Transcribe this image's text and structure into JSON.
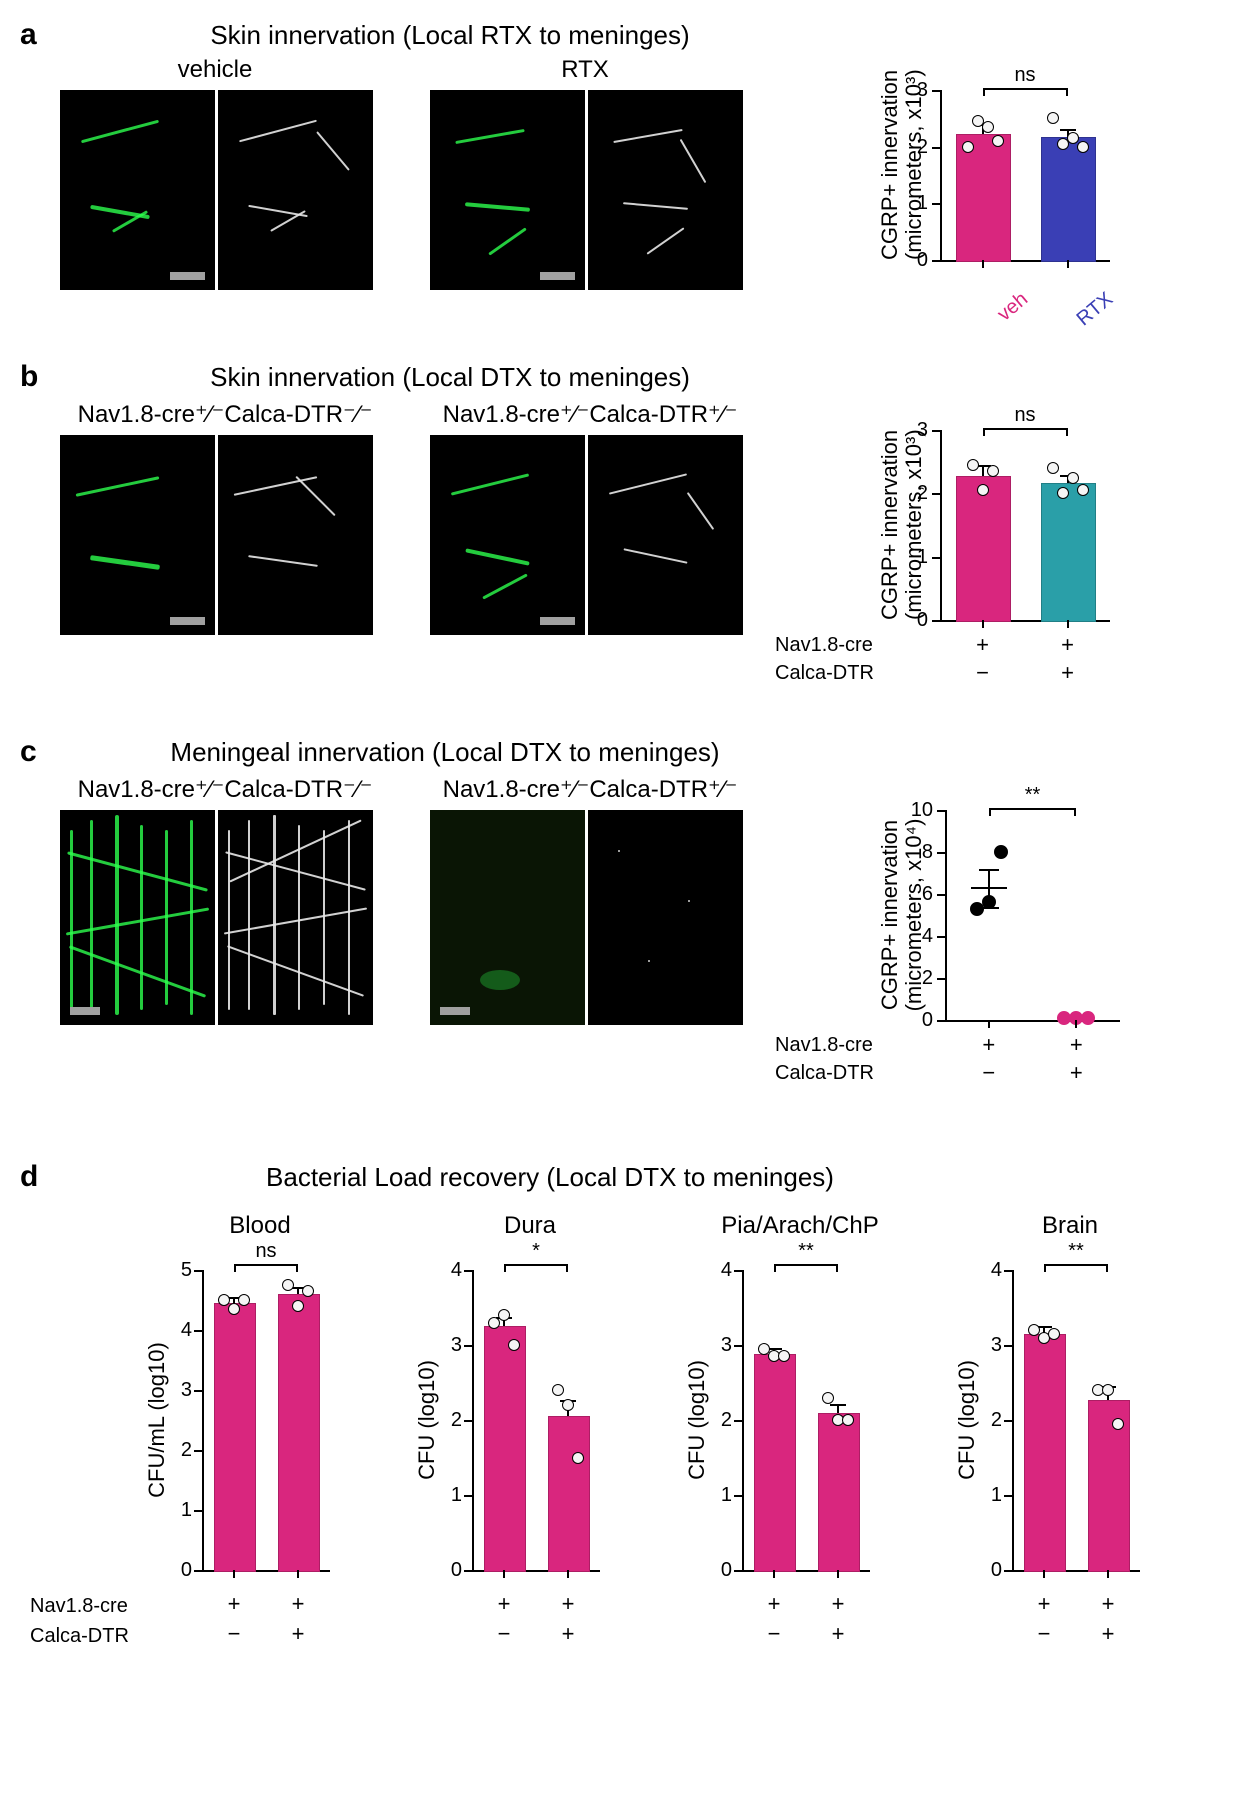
{
  "colors": {
    "magenta": "#d9267e",
    "blue": "#3a3fb5",
    "teal": "#2a9fa8",
    "black": "#000000",
    "white": "#ffffff",
    "point_fill": "#f5f5f5",
    "point_stroke": "#000000"
  },
  "panel_a": {
    "label": "a",
    "title": "Skin innervation (Local RTX to meninges)",
    "left_label": "vehicle",
    "right_label": "RTX",
    "chart": {
      "type": "bar",
      "y_title_line1": "CGRP+ innervation",
      "y_title_line2": "(micrometers, x10³)",
      "ylim": [
        0,
        3
      ],
      "yticks": [
        0,
        1,
        2,
        3
      ],
      "bars": [
        {
          "label": "veh",
          "value": 2.22,
          "err": 0.18,
          "color": "#d9267e",
          "label_color": "#d9267e",
          "points": [
            2.0,
            2.45,
            2.35,
            2.1
          ]
        },
        {
          "label": "RTX",
          "value": 2.17,
          "err": 0.14,
          "color": "#3a3fb5",
          "label_color": "#3a3fb5",
          "points": [
            2.5,
            2.05,
            2.15,
            2.0
          ]
        }
      ],
      "sig": "ns"
    }
  },
  "panel_b": {
    "label": "b",
    "title": "Skin innervation (Local DTX to meninges)",
    "left_label": "Nav1.8-cre⁺⁄⁻Calca-DTR⁻⁄⁻",
    "right_label": "Nav1.8-cre⁺⁄⁻Calca-DTR⁺⁄⁻",
    "chart": {
      "type": "bar",
      "y_title_line1": "CGRP+ innervation",
      "y_title_line2": "(micrometers, x10³)",
      "ylim": [
        0,
        3
      ],
      "yticks": [
        0,
        1,
        2,
        3
      ],
      "bars": [
        {
          "value": 2.28,
          "err": 0.16,
          "color": "#d9267e",
          "points": [
            2.45,
            2.05,
            2.35
          ]
        },
        {
          "value": 2.17,
          "err": 0.12,
          "color": "#2a9fa8",
          "points": [
            2.4,
            2.0,
            2.25,
            2.05
          ]
        }
      ],
      "sig": "ns",
      "genotype_rows": [
        {
          "name": "Nav1.8-cre",
          "syms": [
            "+",
            "+"
          ]
        },
        {
          "name": "Calca-DTR",
          "syms": [
            "−",
            "+"
          ]
        }
      ]
    }
  },
  "panel_c": {
    "label": "c",
    "title": "Meningeal innervation (Local DTX to meninges)",
    "left_label": "Nav1.8-cre⁺⁄⁻Calca-DTR⁻⁄⁻",
    "right_label": "Nav1.8-cre⁺⁄⁻Calca-DTR⁺⁄⁻",
    "chart": {
      "type": "scatter",
      "y_title_line1": "CGRP+ innervation",
      "y_title_line2": "(micrometers, x10⁴)",
      "ylim": [
        0,
        10
      ],
      "yticks": [
        0,
        2,
        4,
        6,
        8,
        10
      ],
      "groups": [
        {
          "mean": 6.3,
          "err": 0.9,
          "color": "#000000",
          "fill": "#000000",
          "points": [
            5.3,
            5.6,
            8.0
          ]
        },
        {
          "mean": 0.1,
          "err": 0.05,
          "color": "#d9267e",
          "fill": "#d9267e",
          "points": [
            0.1,
            0.1,
            0.1
          ]
        }
      ],
      "sig": "**",
      "genotype_rows": [
        {
          "name": "Nav1.8-cre",
          "syms": [
            "+",
            "+"
          ]
        },
        {
          "name": "Calca-DTR",
          "syms": [
            "−",
            "+"
          ]
        }
      ]
    }
  },
  "panel_d": {
    "label": "d",
    "title": "Bacterial Load recovery (Local DTX to meninges)",
    "subplots": [
      {
        "title": "Blood",
        "y_title": "CFU/mL (log10)",
        "ylim": [
          0,
          5
        ],
        "yticks": [
          0,
          1,
          2,
          3,
          4,
          5
        ],
        "bars": [
          {
            "value": 4.45,
            "err": 0.1,
            "points": [
              4.5,
              4.35,
              4.5
            ]
          },
          {
            "value": 4.6,
            "err": 0.12,
            "points": [
              4.75,
              4.4,
              4.65
            ]
          }
        ],
        "sig": "ns"
      },
      {
        "title": "Dura",
        "y_title": "CFU (log10)",
        "ylim": [
          0,
          4
        ],
        "yticks": [
          0,
          1,
          2,
          3,
          4
        ],
        "bars": [
          {
            "value": 3.25,
            "err": 0.12,
            "points": [
              3.3,
              3.4,
              3.0
            ]
          },
          {
            "value": 2.05,
            "err": 0.22,
            "points": [
              2.4,
              2.2,
              1.5
            ]
          }
        ],
        "sig": "*"
      },
      {
        "title": "Pia/Arach/ChP",
        "y_title": "CFU (log10)",
        "ylim": [
          0,
          4
        ],
        "yticks": [
          0,
          1,
          2,
          3,
          4
        ],
        "bars": [
          {
            "value": 2.88,
            "err": 0.08,
            "points": [
              2.95,
              2.85,
              2.85
            ]
          },
          {
            "value": 2.1,
            "err": 0.12,
            "points": [
              2.3,
              2.0,
              2.0
            ]
          }
        ],
        "sig": "**"
      },
      {
        "title": "Brain",
        "y_title": "CFU (log10)",
        "ylim": [
          0,
          4
        ],
        "yticks": [
          0,
          1,
          2,
          3,
          4
        ],
        "bars": [
          {
            "value": 3.15,
            "err": 0.1,
            "points": [
              3.2,
              3.1,
              3.15
            ]
          },
          {
            "value": 2.27,
            "err": 0.18,
            "points": [
              2.4,
              2.4,
              1.95
            ]
          }
        ],
        "sig": "**"
      }
    ],
    "bar_color": "#d9267e",
    "genotype_rows": [
      {
        "name": "Nav1.8-cre",
        "syms": [
          "+",
          "+"
        ]
      },
      {
        "name": "Calca-DTR",
        "syms": [
          "−",
          "+"
        ]
      }
    ]
  }
}
